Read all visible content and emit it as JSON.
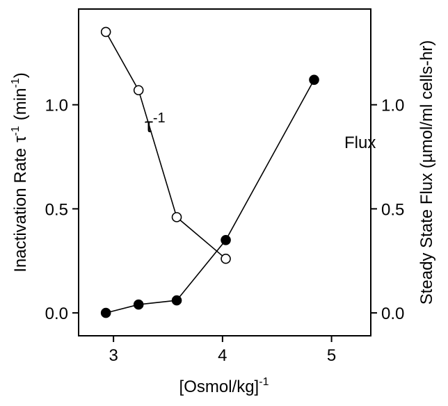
{
  "chart_data": {
    "type": "line",
    "xlabel": "[Osmol/kg]",
    "xlabel_sup": "-1",
    "ylabel_left": "Inactivation Rate",
    "ylabel_left_sym": "τ",
    "ylabel_left_sup": "-1",
    "ylabel_left_unit_pre": "(min",
    "ylabel_left_unit_sup": "-1",
    "ylabel_left_unit_post": ")",
    "ylabel_right": "Steady State Flux (µmol/ml cells-hr)",
    "xlim": [
      2.68,
      5.36
    ],
    "ylim": [
      -0.11,
      1.46
    ],
    "x_ticks": [
      "3",
      "4",
      "5"
    ],
    "y_ticks": [
      "0.0",
      "0.5",
      "1.0"
    ],
    "y_ticks_right": [
      "0.0",
      "0.5",
      "1.0"
    ],
    "grid": false,
    "series": [
      {
        "name": "τ-1",
        "marker": "open-circle",
        "axis": "left",
        "x": [
          2.93,
          3.23,
          3.58,
          4.03
        ],
        "y": [
          1.35,
          1.07,
          0.46,
          0.26
        ]
      },
      {
        "name": "Flux",
        "marker": "filled-circle",
        "axis": "right",
        "x": [
          2.93,
          3.23,
          3.58,
          4.03,
          4.84
        ],
        "y": [
          0.0,
          0.04,
          0.06,
          0.35,
          1.12
        ]
      }
    ],
    "annotations": {
      "tau_label": "τ",
      "tau_sup": "-1",
      "flux_label": "Flux"
    }
  }
}
